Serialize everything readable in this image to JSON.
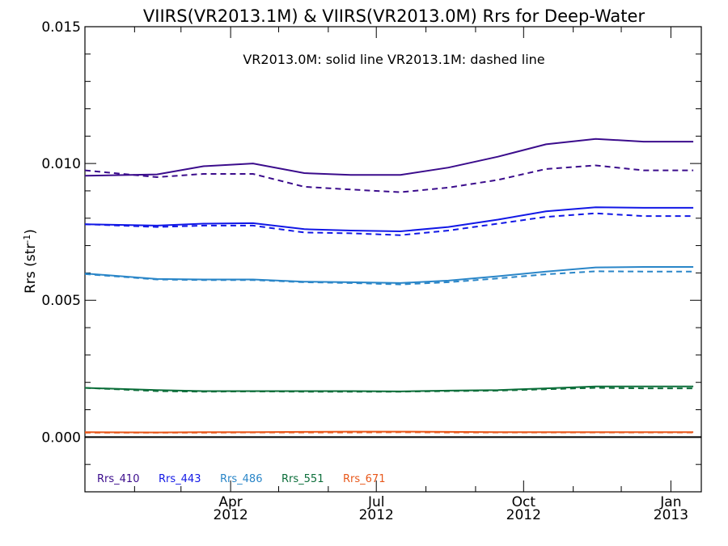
{
  "chart_data": {
    "type": "line",
    "title": "VIIRS(VR2013.1M) & VIIRS(VR2013.0M)  Rrs for Deep-Water",
    "ylabel_main": "Rrs (str",
    "ylabel_sup": "-1",
    "ylabel_close": ")",
    "annotation": "VR2013.0M: solid line   VR2013.1M: dashed line",
    "xlim": [
      "2012-01-01",
      "2013-01-20"
    ],
    "ylim": [
      -0.002,
      0.015
    ],
    "yticks": [
      {
        "value": 0.0,
        "label": "0.000"
      },
      {
        "value": 0.005,
        "label": "0.005"
      },
      {
        "value": 0.01,
        "label": "0.010"
      },
      {
        "value": 0.015,
        "label": "0.015"
      }
    ],
    "yminor_step": 0.001,
    "xticks": [
      {
        "date": "2012-04-01",
        "month": "Apr",
        "year": "2012"
      },
      {
        "date": "2012-07-01",
        "month": "Jul",
        "year": "2012"
      },
      {
        "date": "2012-10-01",
        "month": "Oct",
        "year": "2012"
      },
      {
        "date": "2013-01-01",
        "month": "Jan",
        "year": "2013"
      }
    ],
    "xminor": [
      "2012-02-01",
      "2012-03-01",
      "2012-05-01",
      "2012-06-01",
      "2012-08-01",
      "2012-09-01",
      "2012-11-01",
      "2012-12-01"
    ],
    "zero_line": 0.0,
    "x": [
      "2012-01-01",
      "2012-02-15",
      "2012-03-15",
      "2012-04-15",
      "2012-05-17",
      "2012-06-15",
      "2012-07-16",
      "2012-08-15",
      "2012-09-15",
      "2012-10-15",
      "2012-11-15",
      "2012-12-15",
      "2013-01-15"
    ],
    "series": [
      {
        "name": "Rrs_410",
        "color": "#3b0c8c",
        "solid": [
          0.00955,
          0.0096,
          0.0099,
          0.01,
          0.00965,
          0.00958,
          0.00958,
          0.00985,
          0.01025,
          0.0107,
          0.0109,
          0.0108,
          0.0108
        ],
        "dashed": [
          0.00975,
          0.0095,
          0.00962,
          0.00962,
          0.00915,
          0.00905,
          0.00895,
          0.00912,
          0.0094,
          0.0098,
          0.00993,
          0.00975,
          0.00975
        ]
      },
      {
        "name": "Rrs_443",
        "color": "#1218e6",
        "solid": [
          0.00778,
          0.00773,
          0.0078,
          0.00782,
          0.0076,
          0.00755,
          0.00752,
          0.00768,
          0.00795,
          0.00825,
          0.0084,
          0.00838,
          0.00838
        ],
        "dashed": [
          0.00778,
          0.00768,
          0.00773,
          0.00773,
          0.00748,
          0.00745,
          0.00738,
          0.00755,
          0.0078,
          0.00805,
          0.00818,
          0.00808,
          0.00808
        ]
      },
      {
        "name": "Rrs_486",
        "color": "#2a86c8",
        "solid": [
          0.00598,
          0.00578,
          0.00576,
          0.00576,
          0.00568,
          0.00566,
          0.00563,
          0.00572,
          0.00588,
          0.00605,
          0.0062,
          0.00622,
          0.00622
        ],
        "dashed": [
          0.00596,
          0.00576,
          0.00574,
          0.00574,
          0.00566,
          0.00563,
          0.00558,
          0.00566,
          0.0058,
          0.00595,
          0.00606,
          0.00605,
          0.00605
        ]
      },
      {
        "name": "Rrs_551",
        "color": "#0c6e3a",
        "solid": [
          0.0018,
          0.00172,
          0.00168,
          0.00168,
          0.00168,
          0.00168,
          0.00167,
          0.0017,
          0.00172,
          0.00178,
          0.00185,
          0.00185,
          0.00185
        ],
        "dashed": [
          0.0018,
          0.00168,
          0.00166,
          0.00167,
          0.00166,
          0.00166,
          0.00166,
          0.00168,
          0.0017,
          0.00175,
          0.0018,
          0.00178,
          0.00178
        ]
      },
      {
        "name": "Rrs_671",
        "color": "#e8581b",
        "solid": [
          0.00018,
          0.00017,
          0.00018,
          0.00018,
          0.00019,
          0.0002,
          0.0002,
          0.00019,
          0.00018,
          0.00018,
          0.00018,
          0.00018,
          0.00018
        ],
        "dashed": [
          0.00016,
          0.00016,
          0.00016,
          0.00017,
          0.00017,
          0.00017,
          0.00018,
          0.00017,
          0.00017,
          0.00017,
          0.00017,
          0.00017,
          0.00017
        ]
      }
    ]
  }
}
